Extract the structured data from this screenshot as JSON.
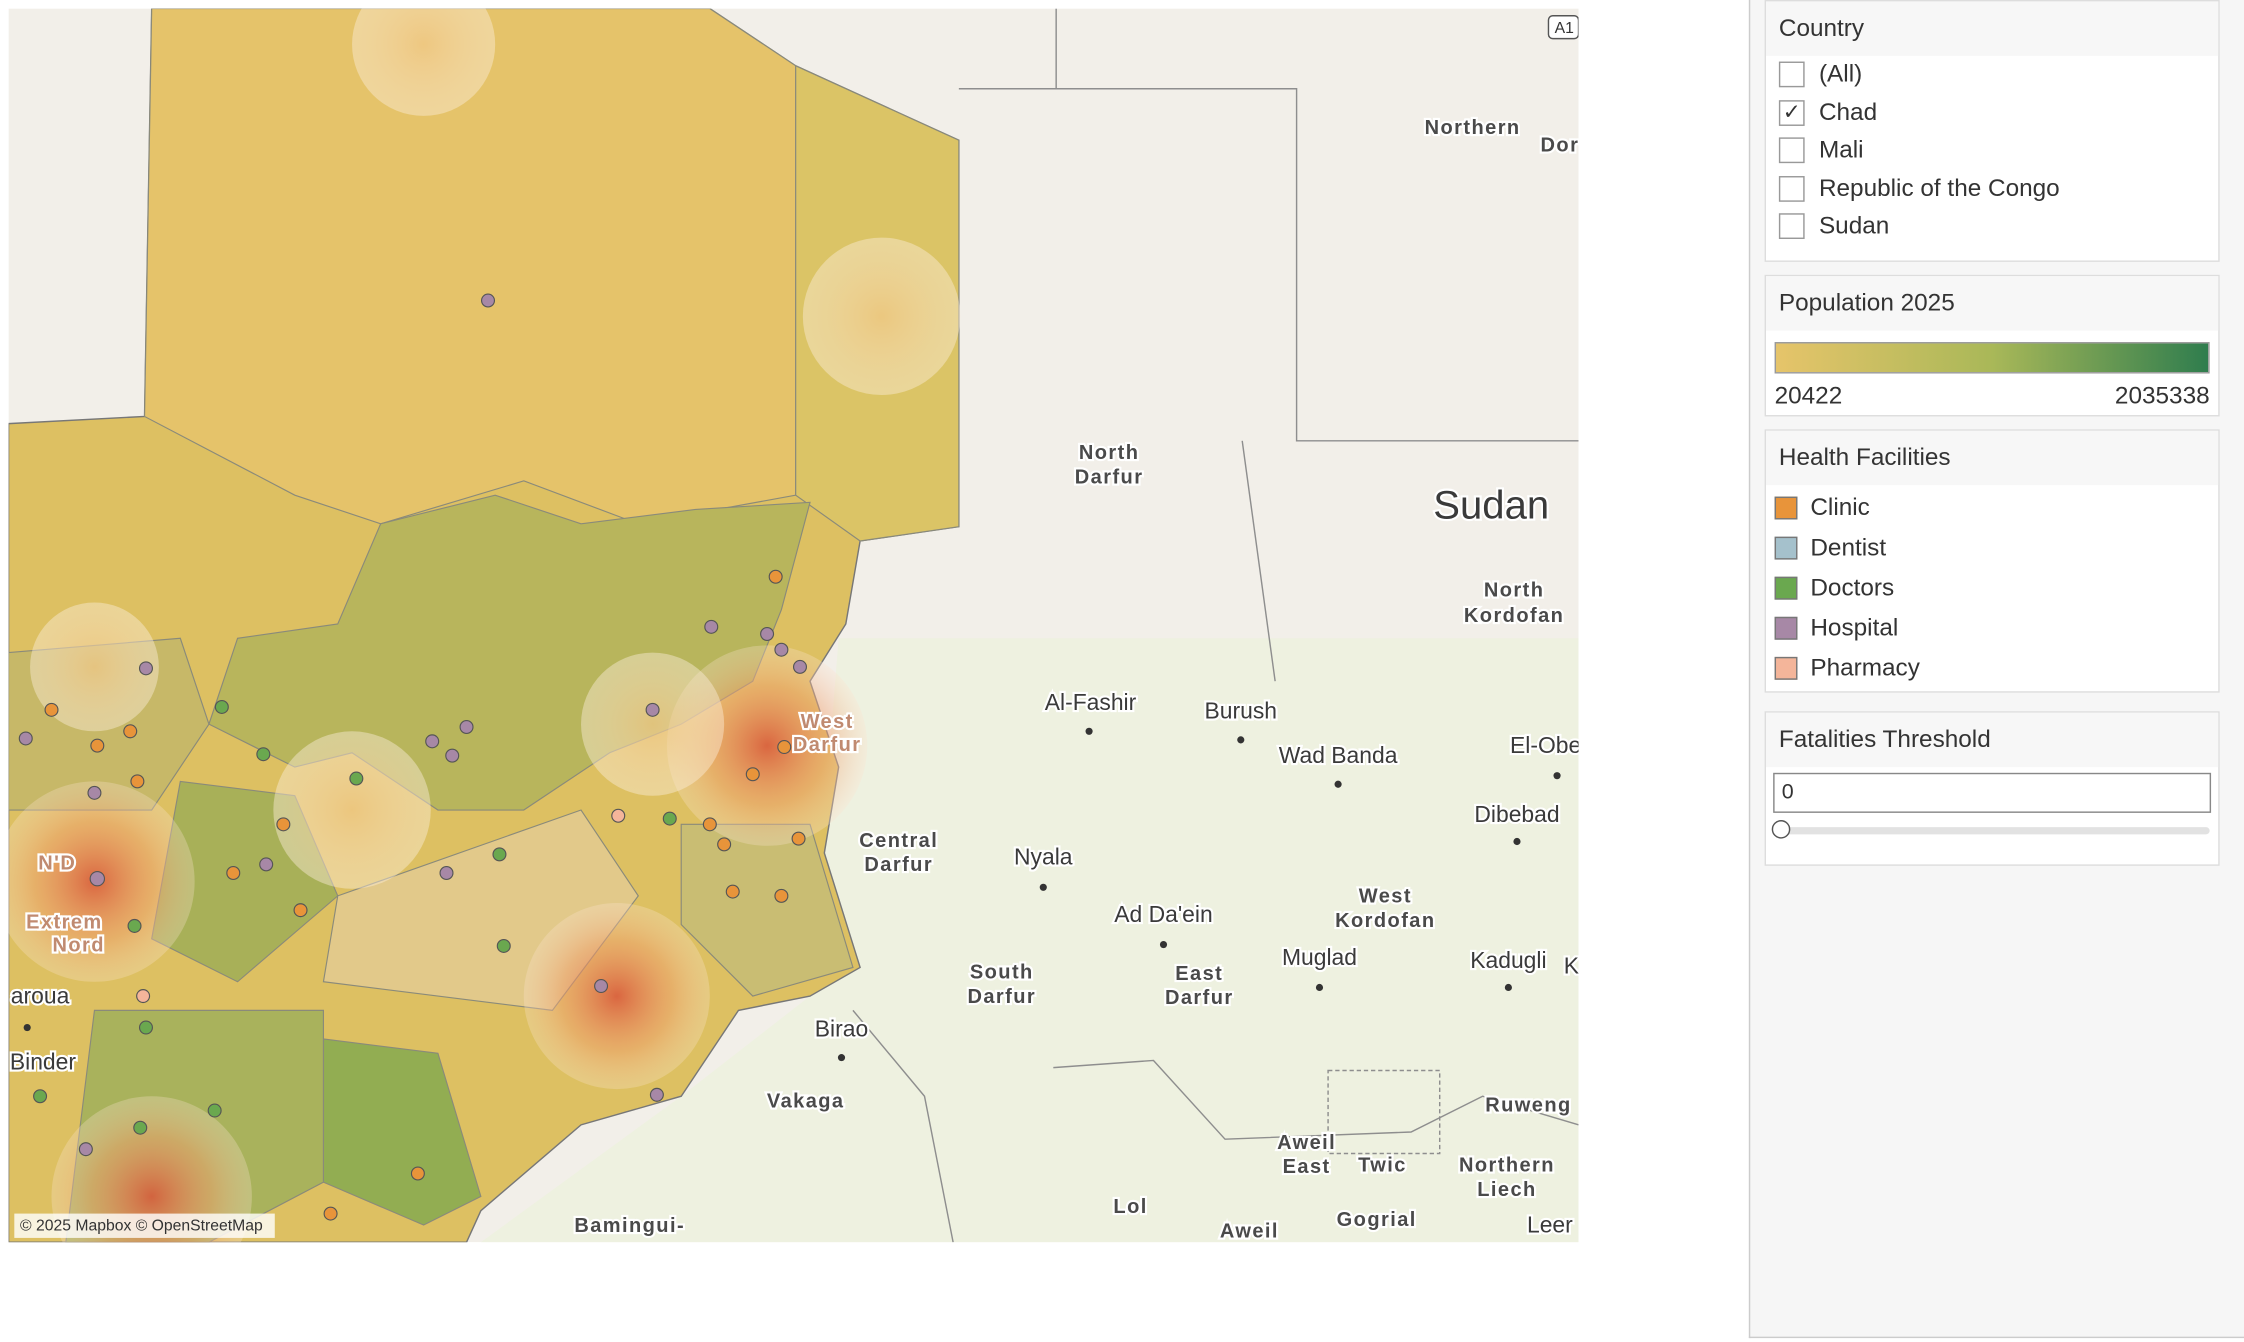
{
  "map": {
    "labels": [
      "Northern",
      "Dor",
      "North",
      "Darfur",
      "Sudan",
      "North",
      "Kordofan",
      "Al-Fashir",
      "Burush",
      "Wad Banda",
      "El-Obe",
      "Dibebad",
      "West",
      "Darfur",
      "Central",
      "Darfur",
      "Nyala",
      "West",
      "Kordofan",
      "Ad Da'ein",
      "Muglad",
      "Kadugli",
      "K",
      "South",
      "Darfur",
      "East",
      "Darfur",
      "Birao",
      "Vakaga",
      "Aweil",
      "East",
      "Twic",
      "Northern",
      "Liech",
      "Ruweng",
      "Lol",
      "Aweil",
      "Gogrial",
      "Leer",
      "Bamingui-",
      "aroua",
      "Binder",
      "N'D",
      "Extrem",
      "Nord",
      "A1"
    ],
    "attribution": "© 2025 Mapbox © OpenStreetMap"
  },
  "filters": {
    "country": {
      "title": "Country",
      "options": [
        {
          "label": "(All)",
          "checked": false
        },
        {
          "label": "Chad",
          "checked": true
        },
        {
          "label": "Mali",
          "checked": false
        },
        {
          "label": "Republic of the Congo",
          "checked": false
        },
        {
          "label": "Sudan",
          "checked": false
        }
      ]
    }
  },
  "legends": {
    "population": {
      "title": "Population 2025",
      "min": 20422,
      "max": 2035338,
      "colors": [
        "#e6c46a",
        "#2f7d4e"
      ]
    },
    "health": {
      "title": "Health Facilities",
      "items": [
        {
          "label": "Clinic",
          "color": "#e8943a"
        },
        {
          "label": "Dentist",
          "color": "#a5c1cc"
        },
        {
          "label": "Doctors",
          "color": "#6aa84f"
        },
        {
          "label": "Hospital",
          "color": "#a788a6"
        },
        {
          "label": "Pharmacy",
          "color": "#f4b59a"
        }
      ]
    }
  },
  "parameter": {
    "title": "Fatalities Threshold",
    "value": 0
  }
}
